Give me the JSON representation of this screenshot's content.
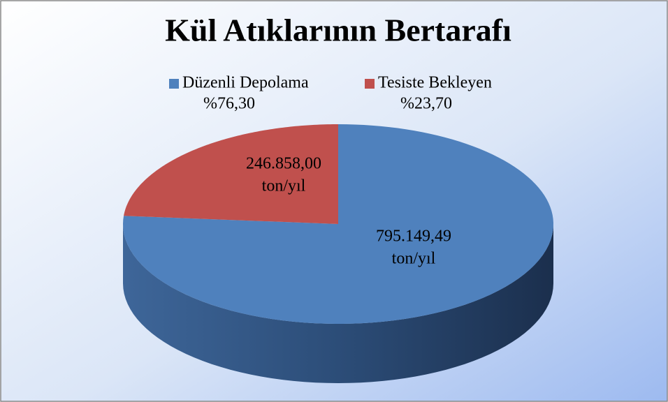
{
  "chart_data": {
    "type": "pie3d",
    "title": "Kül Atıklarının Bertarafı",
    "categories": [
      "Düzenli Depolama",
      "Tesiste Bekleyen"
    ],
    "values": [
      795149.49,
      246858.0
    ],
    "value_labels": [
      "795.149,49",
      "246.858,00"
    ],
    "unit": "ton/yıl",
    "percent_labels": [
      "%76,30",
      "%23,70"
    ],
    "colors": [
      "#4f81bd",
      "#c0504d"
    ],
    "legend": "top"
  }
}
